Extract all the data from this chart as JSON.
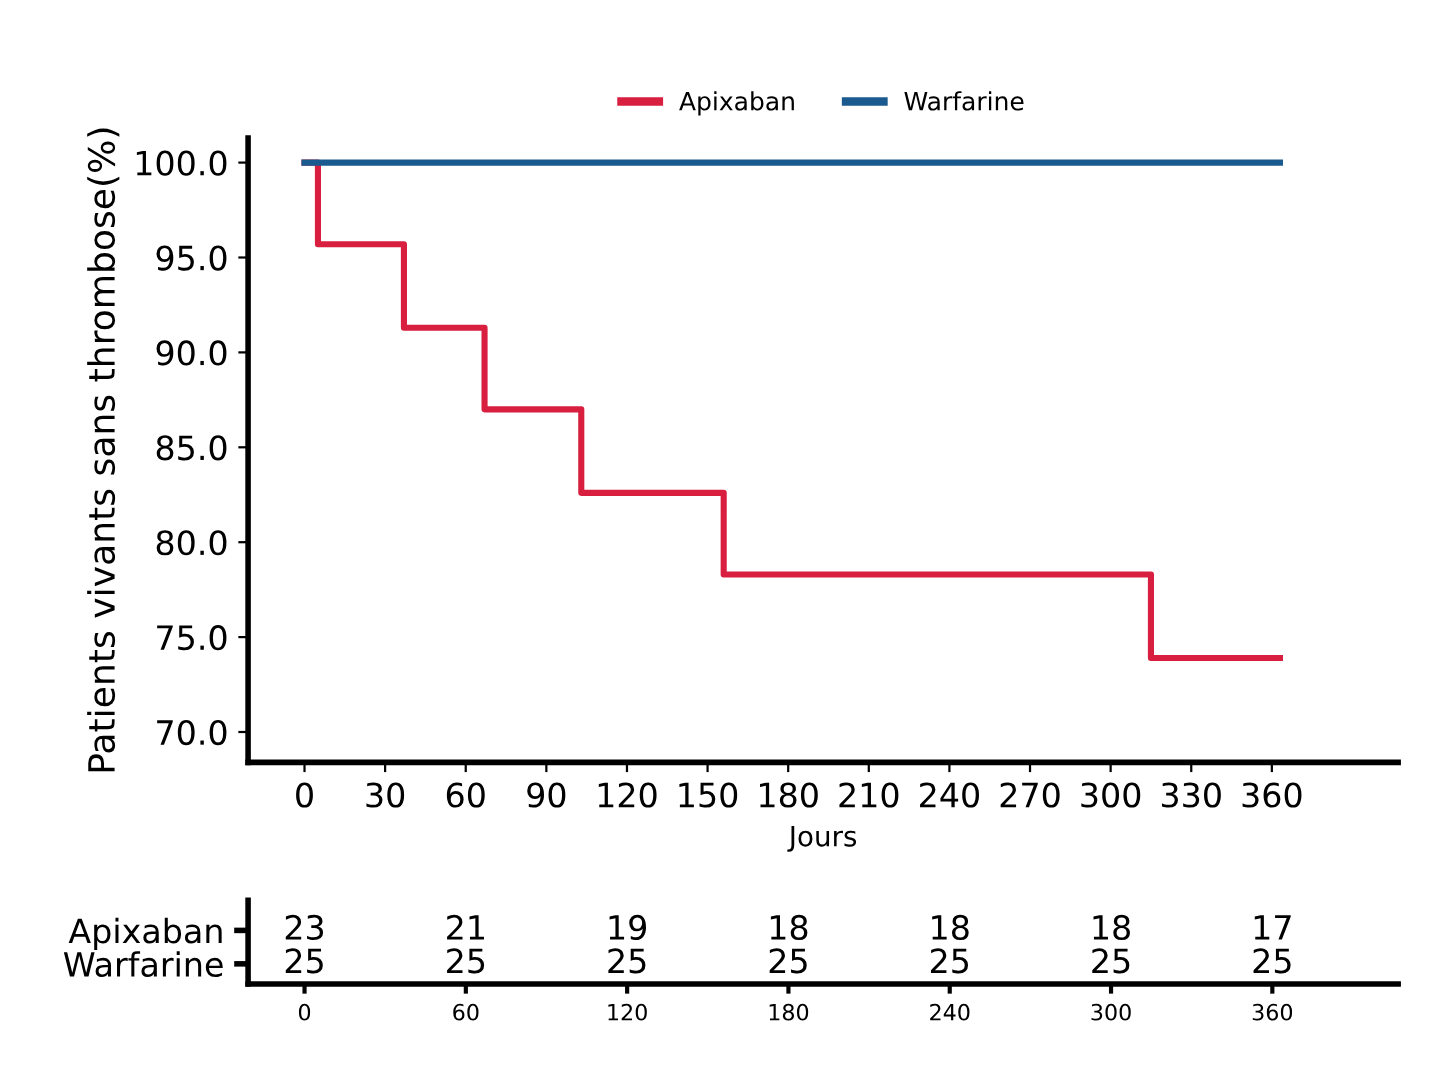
{
  "chart_data": [
    {
      "type": "step",
      "ylabel": "Patients vivants sans thrombose(%)",
      "xlabel": "Jours",
      "series": [
        {
          "name": "Apixaban",
          "color": "#d81f3f",
          "x": [
            0,
            5,
            37,
            67,
            103,
            156,
            315,
            363
          ],
          "values": [
            100.0,
            95.7,
            91.3,
            87.0,
            82.6,
            78.3,
            73.9,
            73.9
          ]
        },
        {
          "name": "Warfarine",
          "color": "#1a5a8e",
          "x": [
            0,
            363
          ],
          "values": [
            100.0,
            100.0
          ]
        }
      ],
      "xlim": [
        -21,
        407
      ],
      "xticks": [
        0,
        30,
        60,
        90,
        120,
        150,
        180,
        210,
        240,
        270,
        300,
        330,
        360
      ],
      "ylim": [
        68.4,
        101.3
      ],
      "yticks": [
        {
          "value": 70,
          "label": "70.0"
        },
        {
          "value": 75,
          "label": "75.0"
        },
        {
          "value": 80,
          "label": "80.0"
        },
        {
          "value": 85,
          "label": "85.0"
        },
        {
          "value": 90,
          "label": "90.0"
        },
        {
          "value": 95,
          "label": "95.0"
        },
        {
          "value": 100,
          "label": "100.0"
        }
      ],
      "legend": "top",
      "grid": false
    },
    {
      "type": "heatmap",
      "categories": [
        "0",
        "60",
        "120",
        "180",
        "240",
        "300",
        "360"
      ],
      "y_categories": [
        "Apixaban",
        "Warfarine"
      ],
      "cells": [
        [
          23,
          21,
          19,
          18,
          18,
          18,
          17
        ],
        [
          25,
          25,
          25,
          25,
          25,
          25,
          25
        ]
      ],
      "data_labels": true
    }
  ]
}
